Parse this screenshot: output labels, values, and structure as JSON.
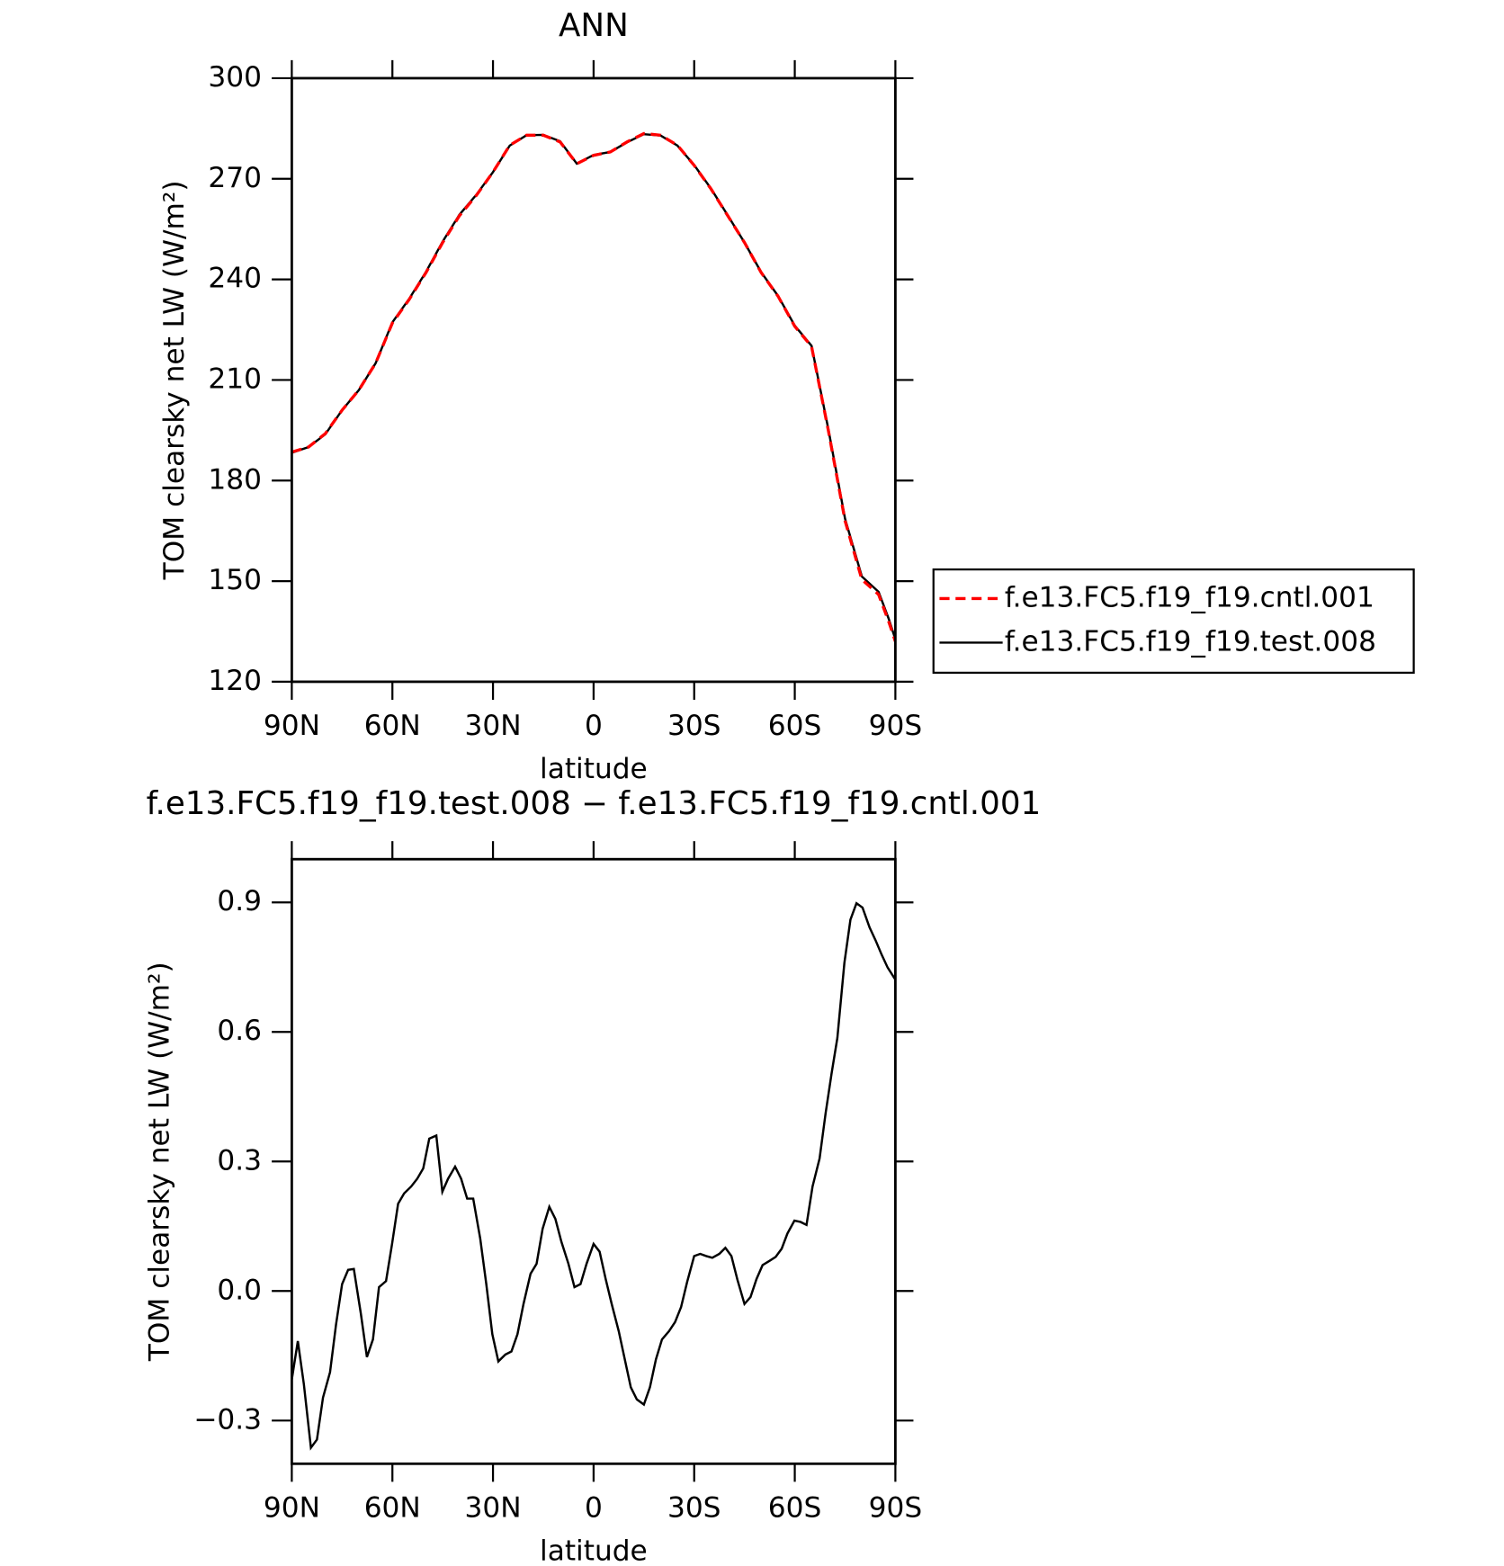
{
  "chart_data": [
    {
      "type": "line",
      "title": "ANN",
      "x_label": "latitude",
      "y_label": "TOM clearsky net LW (W/m²)",
      "x": [
        90,
        85,
        80,
        75,
        70,
        65,
        60,
        55,
        50,
        45,
        40,
        35,
        30,
        25,
        20,
        15,
        10,
        5,
        0,
        -5,
        -10,
        -15,
        -20,
        -25,
        -30,
        -35,
        -40,
        -45,
        -50,
        -55,
        -60,
        -65,
        -70,
        -75,
        -80,
        -85,
        -88,
        -90
      ],
      "series": [
        {
          "name": "f.e13.FC5.f19_f19.cntl.001",
          "color": "#ff0000",
          "line_style": "dashed",
          "values": [
            188.5,
            190,
            194,
            201,
            207,
            215,
            227,
            234,
            242,
            251,
            259,
            265,
            272,
            280,
            283,
            283,
            281,
            274.5,
            277,
            278,
            281,
            283.5,
            283,
            280,
            274,
            267,
            259,
            251,
            242,
            235,
            226,
            220,
            195,
            168,
            150.5,
            146,
            138,
            132
          ]
        },
        {
          "name": "f.e13.FC5.f19_f19.test.008",
          "color": "#000000",
          "line_style": "solid",
          "values": [
            188.3,
            190,
            193.8,
            201,
            207,
            215,
            227.2,
            234.2,
            242.2,
            251.3,
            259.3,
            265.2,
            272,
            279.9,
            283,
            283.1,
            281.2,
            274.5,
            277.1,
            278,
            280.9,
            283.3,
            282.9,
            279.9,
            274.1,
            267.1,
            259.1,
            251,
            242.1,
            235.1,
            226.2,
            220.2,
            195.4,
            168.6,
            151.4,
            146.8,
            138.8,
            132.7
          ]
        }
      ],
      "xlim": [
        90,
        -90
      ],
      "xticks": [
        {
          "value": 90,
          "label": "90N"
        },
        {
          "value": 60,
          "label": "60N"
        },
        {
          "value": 30,
          "label": "30N"
        },
        0,
        {
          "value": -30,
          "label": "30S"
        },
        {
          "value": -60,
          "label": "60S"
        },
        {
          "value": -90,
          "label": "90S"
        }
      ],
      "ylim": [
        120,
        300
      ],
      "yticks": [
        120,
        150,
        180,
        210,
        240,
        270,
        300
      ],
      "legend": "right"
    },
    {
      "type": "line",
      "title": "f.e13.FC5.f19_f19.test.008 − f.e13.FC5.f19_f19.cntl.001",
      "x_label": "latitude",
      "y_label": "TOM clearsky net LW (W/m²)",
      "x": [
        90.0,
        88.2,
        86.4,
        84.3,
        82.5,
        80.7,
        78.6,
        76.8,
        75.0,
        73.2,
        71.5,
        69.4,
        67.6,
        65.8,
        64.0,
        61.9,
        60.1,
        58.3,
        56.5,
        54.4,
        52.6,
        50.8,
        49.0,
        46.9,
        45.1,
        43.4,
        41.3,
        39.5,
        37.7,
        35.9,
        33.8,
        32.0,
        30.2,
        28.4,
        26.3,
        24.5,
        22.7,
        20.9,
        18.8,
        17.0,
        15.2,
        13.2,
        11.4,
        9.6,
        7.5,
        5.7,
        3.9,
        2.1,
        0.0,
        -1.8,
        -3.6,
        -5.4,
        -7.5,
        -9.3,
        -11.1,
        -12.9,
        -15.0,
        -16.8,
        -18.6,
        -20.4,
        -22.5,
        -24.3,
        -26.1,
        -27.9,
        -30.0,
        -31.8,
        -33.6,
        -35.4,
        -37.5,
        -39.3,
        -41.1,
        -42.9,
        -45.0,
        -46.8,
        -48.6,
        -50.4,
        -52.5,
        -54.3,
        -56.1,
        -57.8,
        -59.9,
        -61.7,
        -63.5,
        -65.3,
        -67.4,
        -69.2,
        -71.0,
        -72.7,
        -74.8,
        -76.6,
        -78.4,
        -80.2,
        -82.3,
        -84.1,
        -85.9,
        -87.7,
        -90.0
      ],
      "series": [
        {
          "color": "#000000",
          "line_style": "solid",
          "values": [
            -0.205,
            -0.116,
            -0.216,
            -0.363,
            -0.344,
            -0.247,
            -0.188,
            -0.077,
            0.016,
            0.049,
            0.051,
            -0.053,
            -0.153,
            -0.112,
            0.009,
            0.023,
            0.109,
            0.202,
            0.226,
            0.242,
            0.26,
            0.284,
            0.353,
            0.36,
            0.23,
            0.26,
            0.288,
            0.26,
            0.214,
            0.214,
            0.121,
            0.016,
            -0.1,
            -0.163,
            -0.147,
            -0.14,
            -0.1,
            -0.03,
            0.04,
            0.063,
            0.144,
            0.195,
            0.167,
            0.114,
            0.063,
            0.009,
            0.016,
            0.063,
            0.109,
            0.091,
            0.028,
            -0.03,
            -0.093,
            -0.158,
            -0.223,
            -0.251,
            -0.263,
            -0.223,
            -0.158,
            -0.112,
            -0.093,
            -0.072,
            -0.037,
            0.021,
            0.081,
            0.086,
            0.081,
            0.077,
            0.086,
            0.1,
            0.081,
            0.026,
            -0.03,
            -0.014,
            0.028,
            0.06,
            0.07,
            0.079,
            0.098,
            0.133,
            0.163,
            0.16,
            0.153,
            0.242,
            0.307,
            0.412,
            0.505,
            0.586,
            0.76,
            0.86,
            0.898,
            0.888,
            0.842,
            0.812,
            0.779,
            0.749,
            0.721
          ]
        }
      ],
      "xlim": [
        90,
        -90
      ],
      "xticks": [
        {
          "value": 90,
          "label": "90N"
        },
        {
          "value": 60,
          "label": "60N"
        },
        {
          "value": 30,
          "label": "30N"
        },
        0,
        {
          "value": -30,
          "label": "30S"
        },
        {
          "value": -60,
          "label": "60S"
        },
        {
          "value": -90,
          "label": "90S"
        }
      ],
      "ylim": [
        -0.4,
        1.0
      ],
      "yticks": [
        {
          "value": -0.3,
          "label": "−0.3"
        },
        {
          "value": 0,
          "label": "0.0"
        },
        {
          "value": 0.3,
          "label": "0.3"
        },
        {
          "value": 0.6,
          "label": "0.6"
        },
        {
          "value": 0.9,
          "label": "0.9"
        }
      ]
    }
  ]
}
